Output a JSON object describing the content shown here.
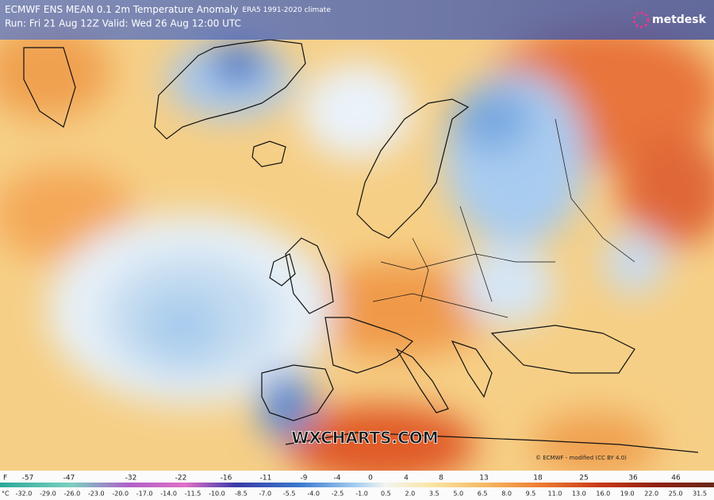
{
  "header": {
    "title": "ECMWF ENS MEAN 0.1 2m Temperature Anomaly",
    "climate": "ERA5 1991-2020 climate",
    "run": "Run: Fri 21 Aug 12Z Valid: Wed 26 Aug 12:00 UTC"
  },
  "logo": "metdesk",
  "watermark": "WXCHARTS.COM",
  "copyright": "© ECMWF - modified (CC BY 4.0)",
  "legend": {
    "f_unit": "F",
    "f_labels": [
      "-57",
      "-47",
      "-32",
      "-22",
      "-16",
      "-11",
      "-9",
      "-4",
      "0",
      "4",
      "8",
      "13",
      "18",
      "25",
      "36",
      "46"
    ],
    "c_unit": "°C",
    "c_labels": [
      "-32.0",
      "-29.0",
      "-26.0",
      "-23.0",
      "-20.0",
      "-17.0",
      "-14.0",
      "-11.5",
      "-10.0",
      "-8.5",
      "-7.0",
      "-5.5",
      "-4.0",
      "-2.5",
      "-1.0",
      "0.5",
      "2.0",
      "3.5",
      "5.0",
      "6.5",
      "8.0",
      "9.5",
      "11.0",
      "13.0",
      "16.0",
      "19.0",
      "22.0",
      "25.0",
      "31.5"
    ]
  }
}
